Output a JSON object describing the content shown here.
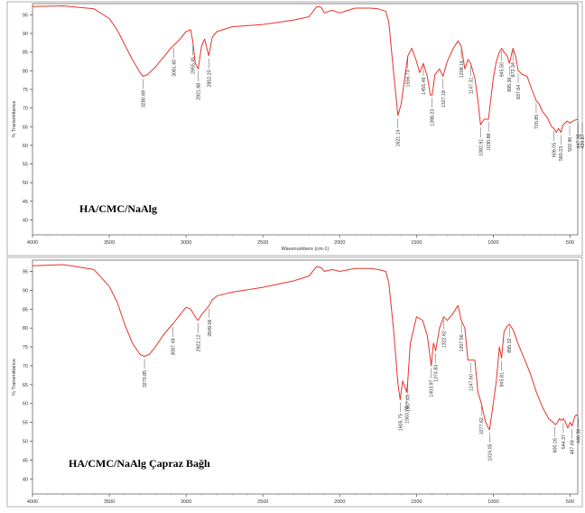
{
  "chart_data": [
    {
      "type": "line",
      "sample_label": "HA/CMC/NaAlg",
      "ylabel": "% Transmittance",
      "xlabel": "Wavenumbers (cm-1)",
      "xlim": [
        4000,
        450
      ],
      "ylim": [
        36,
        98
      ],
      "x_ticks": [
        4000,
        3500,
        3000,
        2500,
        2000,
        1500,
        1000,
        500
      ],
      "x_tick_labels": [
        "4000",
        "3500",
        "3000",
        "2500",
        "2000",
        "1500",
        "1000",
        "500"
      ],
      "y_ticks": [
        40,
        45,
        50,
        55,
        60,
        65,
        70,
        75,
        80,
        85,
        90,
        95
      ],
      "y_tick_labels": [
        "40",
        "45",
        "50",
        "55",
        "60",
        "65",
        "70",
        "75",
        "80",
        "85",
        "90",
        "95"
      ],
      "line_color": "#e8332a",
      "x": [
        4000,
        3800,
        3600,
        3500,
        3450,
        3400,
        3350,
        3300,
        3280,
        3250,
        3200,
        3150,
        3100,
        3081,
        3050,
        3000,
        2970,
        2955,
        2940,
        2921,
        2900,
        2880,
        2852,
        2830,
        2800,
        2700,
        2500,
        2300,
        2200,
        2150,
        2120,
        2100,
        2050,
        2000,
        1900,
        1800,
        1750,
        1700,
        1680,
        1650,
        1621,
        1600,
        1570,
        1556,
        1530,
        1500,
        1480,
        1455,
        1430,
        1410,
        1398,
        1380,
        1350,
        1327,
        1300,
        1260,
        1230,
        1208,
        1185,
        1165,
        1147,
        1120,
        1100,
        1083,
        1060,
        1031,
        1000,
        980,
        960,
        945,
        930,
        910,
        895,
        872,
        855,
        838,
        810,
        780,
        750,
        721,
        700,
        680,
        650,
        620,
        606,
        590,
        575,
        560,
        545,
        520,
        502,
        480,
        465,
        447,
        430,
        420
      ],
      "y": [
        97.2,
        97.4,
        96.6,
        94,
        91,
        87,
        83,
        79.5,
        78.5,
        79,
        81,
        83.5,
        86,
        86.8,
        88,
        90.5,
        91,
        87.5,
        82,
        80.5,
        86.5,
        88.5,
        84,
        89,
        90.5,
        91.8,
        92.4,
        93.6,
        94.5,
        97.2,
        97,
        95.5,
        96.2,
        95.5,
        96.8,
        96.8,
        96.6,
        96,
        93,
        80,
        68,
        71,
        80,
        84,
        86,
        82.5,
        79.5,
        82,
        78.5,
        73.5,
        73.5,
        79,
        80.5,
        78.5,
        82.5,
        86,
        88,
        86.5,
        80.5,
        83,
        82,
        78,
        72,
        65.5,
        67,
        67,
        78,
        82.5,
        85,
        86,
        85,
        84,
        82,
        86,
        84,
        80,
        79,
        78.5,
        75,
        72,
        71,
        69,
        67.5,
        65,
        64.5,
        63.5,
        64.5,
        63.5,
        65.5,
        66.5,
        66,
        66.5,
        66.8,
        67,
        66.8,
        66
      ],
      "annotations": [
        {
          "text": "3280.69",
          "x": 3280.69,
          "y": 78.5
        },
        {
          "text": "3081.60",
          "x": 3081.6,
          "y": 86.8
        },
        {
          "text": "2955.45",
          "x": 2955.45,
          "y": 87.5
        },
        {
          "text": "2921.68",
          "x": 2921.68,
          "y": 80.5
        },
        {
          "text": "2852.20",
          "x": 2852.2,
          "y": 84
        },
        {
          "text": "1621.14",
          "x": 1621.14,
          "y": 68
        },
        {
          "text": "1556.73",
          "x": 1556.73,
          "y": 84
        },
        {
          "text": "1455.46",
          "x": 1455.46,
          "y": 82
        },
        {
          "text": "1398.23",
          "x": 1398.23,
          "y": 73.5
        },
        {
          "text": "1327.18",
          "x": 1327.18,
          "y": 78.5
        },
        {
          "text": "1208.16",
          "x": 1208.16,
          "y": 86.5
        },
        {
          "text": "1147.31",
          "x": 1147.31,
          "y": 82
        },
        {
          "text": "1082.91",
          "x": 1082.91,
          "y": 65.5
        },
        {
          "text": "1030.88",
          "x": 1030.88,
          "y": 67
        },
        {
          "text": "945.50",
          "x": 945.5,
          "y": 86
        },
        {
          "text": "895.36",
          "x": 895.36,
          "y": 82
        },
        {
          "text": "872.34",
          "x": 872.34,
          "y": 86
        },
        {
          "text": "837.64",
          "x": 837.64,
          "y": 80
        },
        {
          "text": "720.85",
          "x": 720.85,
          "y": 72
        },
        {
          "text": "606.05",
          "x": 606.05,
          "y": 64.5
        },
        {
          "text": "560.23",
          "x": 560.23,
          "y": 63.5
        },
        {
          "text": "502.90",
          "x": 502.9,
          "y": 66
        },
        {
          "text": "447.38",
          "x": 447.38,
          "y": 66.8
        },
        {
          "text": "420.87",
          "x": 420.87,
          "y": 66.8
        }
      ]
    },
    {
      "type": "line",
      "sample_label": "HA/CMC/NaAlg  Çapraz Bağlı",
      "ylabel": "% Transmittance",
      "xlabel": "",
      "xlim": [
        4000,
        450
      ],
      "ylim": [
        36,
        98
      ],
      "x_ticks": [
        4000,
        3500,
        3000,
        2500,
        2000,
        1500,
        1000,
        500
      ],
      "x_tick_labels": [
        "4000",
        "3500",
        "3000",
        "2500",
        "2000",
        "1500",
        "1000",
        "500"
      ],
      "y_ticks": [
        40,
        45,
        50,
        55,
        60,
        65,
        70,
        75,
        80,
        85,
        90,
        95
      ],
      "y_tick_labels": [
        "40",
        "45",
        "50",
        "55",
        "60",
        "65",
        "70",
        "75",
        "80",
        "85",
        "90",
        "95"
      ],
      "line_color": "#e8332a",
      "x": [
        4000,
        3800,
        3600,
        3500,
        3450,
        3400,
        3350,
        3300,
        3271,
        3240,
        3200,
        3150,
        3100,
        3087,
        3050,
        3000,
        2970,
        2940,
        2922,
        2900,
        2880,
        2849,
        2830,
        2800,
        2700,
        2500,
        2300,
        2200,
        2150,
        2120,
        2100,
        2050,
        2000,
        1900,
        1800,
        1750,
        1700,
        1680,
        1650,
        1620,
        1606,
        1590,
        1564,
        1557,
        1540,
        1500,
        1460,
        1430,
        1404,
        1390,
        1375,
        1350,
        1323,
        1300,
        1260,
        1230,
        1208,
        1185,
        1165,
        1148,
        1120,
        1100,
        1078,
        1050,
        1024,
        1000,
        980,
        960,
        946,
        930,
        910,
        895,
        870,
        840,
        800,
        760,
        720,
        680,
        640,
        610,
        600,
        590,
        570,
        555,
        544,
        530,
        515,
        500,
        487,
        470,
        460,
        446,
        440,
        430,
        420
      ],
      "y": [
        96.5,
        96.8,
        95.5,
        91,
        87,
        81,
        76,
        73,
        72.5,
        73,
        75,
        78,
        80.5,
        81,
        83,
        85.5,
        85,
        83,
        82,
        83.5,
        84.5,
        86,
        87.5,
        88.5,
        89.5,
        90.8,
        92.5,
        93.8,
        96.3,
        96,
        95,
        95.5,
        95,
        95.8,
        95.8,
        95.5,
        95,
        92,
        80,
        65,
        61,
        66,
        63,
        66,
        76,
        83,
        82,
        78,
        70,
        76,
        74,
        80,
        83,
        82,
        84,
        86,
        82,
        80,
        71.5,
        71.5,
        71.5,
        63,
        60,
        55,
        53,
        60,
        66,
        75,
        72,
        79,
        80.5,
        81,
        79.5,
        76,
        72,
        68,
        63,
        59,
        56,
        55,
        54.5,
        54.5,
        56,
        55.5,
        56,
        55,
        53.5,
        55,
        54,
        56.5,
        57,
        56.5,
        57.2,
        56.5,
        56
      ],
      "annotations": [
        {
          "text": "3270.85",
          "x": 3270.85,
          "y": 72.5
        },
        {
          "text": "3087.49",
          "x": 3087.49,
          "y": 81
        },
        {
          "text": "2922.12",
          "x": 2922.12,
          "y": 82
        },
        {
          "text": "2849.06",
          "x": 2849.06,
          "y": 86
        },
        {
          "text": "1605.75",
          "x": 1605.75,
          "y": 61
        },
        {
          "text": "1563.78",
          "x": 1563.78,
          "y": 63
        },
        {
          "text": "1557.43",
          "x": 1557.43,
          "y": 66
        },
        {
          "text": "1403.97",
          "x": 1403.97,
          "y": 70
        },
        {
          "text": "1374.83",
          "x": 1374.83,
          "y": 74
        },
        {
          "text": "1322.62",
          "x": 1322.62,
          "y": 83
        },
        {
          "text": "1207.56",
          "x": 1207.56,
          "y": 82
        },
        {
          "text": "1147.60",
          "x": 1147.6,
          "y": 71.5
        },
        {
          "text": "1077.62",
          "x": 1077.62,
          "y": 60
        },
        {
          "text": "1024.05",
          "x": 1024.05,
          "y": 53
        },
        {
          "text": "945.81",
          "x": 945.81,
          "y": 72
        },
        {
          "text": "895.32",
          "x": 895.32,
          "y": 81
        },
        {
          "text": "600.16",
          "x": 600.16,
          "y": 54.5
        },
        {
          "text": "544.37",
          "x": 544.37,
          "y": 55.5
        },
        {
          "text": "487.48",
          "x": 487.48,
          "y": 54
        },
        {
          "text": "446.36",
          "x": 446.36,
          "y": 57
        }
      ]
    }
  ]
}
